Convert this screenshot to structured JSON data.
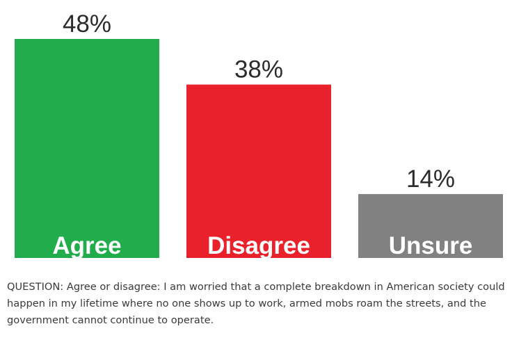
{
  "chart_data": {
    "type": "bar",
    "categories": [
      "Agree",
      "Disagree",
      "Unsure"
    ],
    "values": [
      48,
      38,
      14
    ],
    "value_labels": [
      "48%",
      "38%",
      "14%"
    ],
    "colors": [
      "#21ad4b",
      "#e8212b",
      "#818181"
    ],
    "category_labels_inside_bars": true,
    "ylim": [
      0,
      48
    ],
    "grid": false,
    "legend": "none"
  },
  "question": "QUESTION: Agree or disagree: I am worried that a complete breakdown in American society could happen in my lifetime where no one shows up to work, armed mobs roam the streets, and the government cannot continue to operate."
}
